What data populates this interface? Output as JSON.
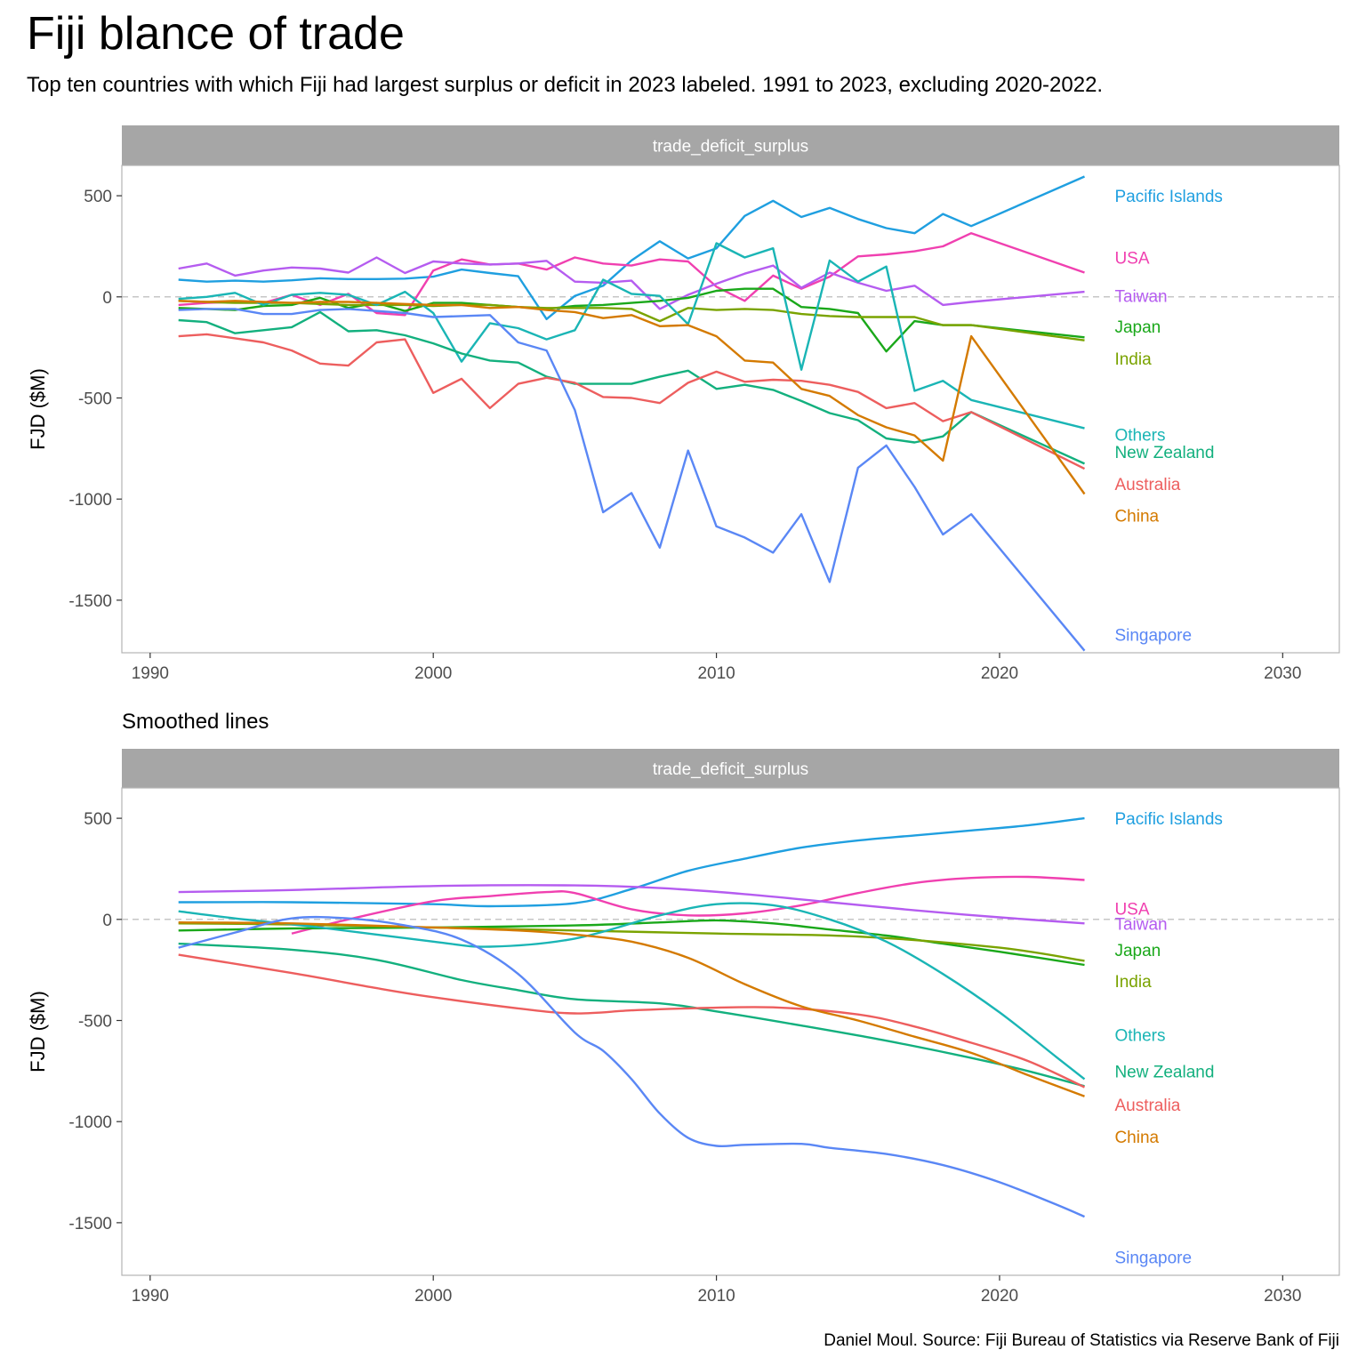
{
  "title": "Fiji blance of trade",
  "subtitle": "Top ten countries with which Fiji had largest surplus or deficit in 2023 labeled. 1991 to 2023, excluding 2020-2022.",
  "caption": "Daniel Moul. Source: Fiji Bureau of Statistics via Reserve Bank of Fiji",
  "chart_data": [
    {
      "type": "line",
      "strip_label": "trade_deficit_surplus",
      "ylabel": "FJD ($M)",
      "xlim": [
        1989,
        2032
      ],
      "ylim": [
        -1760,
        650
      ],
      "x_ticks": [
        1990,
        2000,
        2010,
        2020,
        2030
      ],
      "y_ticks": [
        500,
        0,
        -500,
        -1000,
        -1500
      ],
      "reference_line": 0,
      "grid": false,
      "series": [
        {
          "name": "Pacific Islands",
          "color": "#1f9fe0",
          "label_y": 500,
          "x": [
            1991,
            1992,
            1993,
            1994,
            1995,
            1996,
            1997,
            1998,
            1999,
            2000,
            2001,
            2002,
            2003,
            2004,
            2005,
            2006,
            2007,
            2008,
            2009,
            2010,
            2011,
            2012,
            2013,
            2014,
            2015,
            2016,
            2017,
            2018,
            2019,
            2023
          ],
          "y": [
            85,
            75,
            80,
            75,
            82,
            92,
            88,
            88,
            90,
            100,
            135,
            118,
            102,
            -110,
            5,
            55,
            180,
            275,
            190,
            240,
            400,
            475,
            395,
            440,
            385,
            340,
            315,
            410,
            350,
            595
          ]
        },
        {
          "name": "USA",
          "color": "#f040b0",
          "label_y": 195,
          "x": [
            1991,
            1992,
            1993,
            1994,
            1995,
            1996,
            1997,
            1998,
            1999,
            2000,
            2001,
            2002,
            2003,
            2004,
            2005,
            2006,
            2007,
            2008,
            2009,
            2010,
            2011,
            2012,
            2013,
            2014,
            2015,
            2016,
            2017,
            2018,
            2019,
            2023
          ],
          "y": [
            -40,
            -30,
            -25,
            -30,
            10,
            -40,
            15,
            -80,
            -90,
            130,
            185,
            160,
            165,
            135,
            195,
            165,
            155,
            185,
            175,
            50,
            -20,
            105,
            40,
            100,
            200,
            210,
            225,
            250,
            315,
            120
          ]
        },
        {
          "name": "Taiwan",
          "color": "#b55cf0",
          "label_y": 5,
          "x": [
            1991,
            1992,
            1993,
            1994,
            1995,
            1996,
            1997,
            1998,
            1999,
            2000,
            2001,
            2002,
            2003,
            2004,
            2005,
            2006,
            2007,
            2008,
            2009,
            2010,
            2011,
            2012,
            2013,
            2014,
            2015,
            2016,
            2017,
            2018,
            2019,
            2023
          ],
          "y": [
            140,
            165,
            105,
            130,
            145,
            140,
            120,
            195,
            118,
            175,
            165,
            160,
            165,
            178,
            75,
            70,
            80,
            -60,
            10,
            65,
            115,
            155,
            45,
            120,
            70,
            30,
            55,
            -40,
            -25,
            25
          ]
        },
        {
          "name": "Japan",
          "color": "#1aa81a",
          "label_y": -145,
          "x": [
            1991,
            1992,
            1993,
            1994,
            1995,
            1996,
            1997,
            1998,
            1999,
            2000,
            2001,
            2002,
            2003,
            2004,
            2005,
            2006,
            2007,
            2008,
            2009,
            2010,
            2011,
            2012,
            2013,
            2014,
            2015,
            2016,
            2017,
            2018,
            2019,
            2023
          ],
          "y": [
            -55,
            -60,
            -65,
            -45,
            -40,
            -5,
            -55,
            -30,
            -70,
            -30,
            -30,
            -40,
            -50,
            -60,
            -45,
            -40,
            -30,
            -20,
            -5,
            30,
            40,
            40,
            -50,
            -60,
            -80,
            -270,
            -120,
            -140,
            -140,
            -200
          ]
        },
        {
          "name": "India",
          "color": "#7aa300",
          "label_y": -305,
          "x": [
            1991,
            1992,
            1993,
            1994,
            1995,
            1996,
            1997,
            1998,
            1999,
            2000,
            2001,
            2002,
            2003,
            2004,
            2005,
            2006,
            2007,
            2008,
            2009,
            2010,
            2011,
            2012,
            2013,
            2014,
            2015,
            2016,
            2017,
            2018,
            2019,
            2023
          ],
          "y": [
            -20,
            -25,
            -30,
            -30,
            -30,
            -35,
            -40,
            -40,
            -40,
            -45,
            -40,
            -40,
            -50,
            -55,
            -55,
            -55,
            -60,
            -120,
            -55,
            -65,
            -60,
            -65,
            -85,
            -95,
            -100,
            -100,
            -100,
            -140,
            -140,
            -215
          ]
        },
        {
          "name": "Others",
          "color": "#1ab5b5",
          "label_y": -680,
          "x": [
            1991,
            1992,
            1993,
            1994,
            1995,
            1996,
            1997,
            1998,
            1999,
            2000,
            2001,
            2002,
            2003,
            2004,
            2005,
            2006,
            2007,
            2008,
            2009,
            2010,
            2011,
            2012,
            2013,
            2014,
            2015,
            2016,
            2017,
            2018,
            2019,
            2023
          ],
          "y": [
            -10,
            0,
            20,
            -40,
            10,
            20,
            10,
            -40,
            25,
            -80,
            -320,
            -130,
            -155,
            -210,
            -165,
            85,
            15,
            5,
            -135,
            265,
            195,
            240,
            -360,
            180,
            75,
            150,
            -465,
            -415,
            -510,
            -650
          ]
        },
        {
          "name": "New Zealand",
          "color": "#13b07e",
          "label_y": -765,
          "x": [
            1991,
            1992,
            1993,
            1994,
            1995,
            1996,
            1997,
            1998,
            1999,
            2000,
            2001,
            2002,
            2003,
            2004,
            2005,
            2006,
            2007,
            2008,
            2009,
            2010,
            2011,
            2012,
            2013,
            2014,
            2015,
            2016,
            2017,
            2018,
            2019,
            2023
          ],
          "y": [
            -115,
            -125,
            -180,
            -165,
            -150,
            -75,
            -170,
            -165,
            -190,
            -230,
            -280,
            -315,
            -325,
            -395,
            -430,
            -430,
            -430,
            -395,
            -365,
            -455,
            -435,
            -460,
            -515,
            -575,
            -610,
            -700,
            -720,
            -690,
            -570,
            -825
          ]
        },
        {
          "name": "Australia",
          "color": "#ed5e5e",
          "label_y": -925,
          "x": [
            1991,
            1992,
            1993,
            1994,
            1995,
            1996,
            1997,
            1998,
            1999,
            2000,
            2001,
            2002,
            2003,
            2004,
            2005,
            2006,
            2007,
            2008,
            2009,
            2010,
            2011,
            2012,
            2013,
            2014,
            2015,
            2016,
            2017,
            2018,
            2019,
            2023
          ],
          "y": [
            -195,
            -185,
            -205,
            -225,
            -265,
            -330,
            -340,
            -225,
            -210,
            -475,
            -405,
            -550,
            -430,
            -400,
            -425,
            -495,
            -500,
            -525,
            -425,
            -370,
            -420,
            -410,
            -415,
            -435,
            -470,
            -550,
            -525,
            -615,
            -570,
            -850
          ]
        },
        {
          "name": "China",
          "color": "#d47a00",
          "label_y": -1080,
          "x": [
            1991,
            1992,
            1993,
            1994,
            1995,
            1996,
            1997,
            1998,
            1999,
            2000,
            2001,
            2002,
            2003,
            2004,
            2005,
            2006,
            2007,
            2008,
            2009,
            2010,
            2011,
            2012,
            2013,
            2014,
            2015,
            2016,
            2017,
            2018,
            2019,
            2023
          ],
          "y": [
            -20,
            -25,
            -20,
            -25,
            -30,
            -25,
            -25,
            -30,
            -35,
            -40,
            -40,
            -55,
            -50,
            -65,
            -75,
            -105,
            -90,
            -145,
            -140,
            -195,
            -315,
            -325,
            -455,
            -490,
            -585,
            -645,
            -685,
            -810,
            -195,
            -975
          ]
        },
        {
          "name": "Singapore",
          "color": "#5a87f5",
          "label_y": -1670,
          "x": [
            1991,
            1992,
            1993,
            1994,
            1995,
            1996,
            1997,
            1998,
            1999,
            2000,
            2001,
            2002,
            2003,
            2004,
            2005,
            2006,
            2007,
            2008,
            2009,
            2010,
            2011,
            2012,
            2013,
            2014,
            2015,
            2016,
            2017,
            2018,
            2019,
            2023
          ],
          "y": [
            -65,
            -60,
            -60,
            -85,
            -85,
            -65,
            -60,
            -70,
            -80,
            -100,
            -95,
            -90,
            -225,
            -265,
            -560,
            -1065,
            -970,
            -1240,
            -760,
            -1135,
            -1190,
            -1265,
            -1075,
            -1410,
            -845,
            -735,
            -940,
            -1175,
            -1075,
            -1750
          ]
        }
      ]
    },
    {
      "type": "line",
      "panel_title": "Smoothed lines",
      "strip_label": "trade_deficit_surplus",
      "ylabel": "FJD ($M)",
      "xlim": [
        1989,
        2032
      ],
      "ylim": [
        -1760,
        650
      ],
      "x_ticks": [
        1990,
        2000,
        2010,
        2020,
        2030
      ],
      "y_ticks": [
        500,
        0,
        -500,
        -1000,
        -1500
      ],
      "reference_line": 0,
      "grid": false,
      "series": [
        {
          "name": "Pacific Islands",
          "color": "#1f9fe0",
          "label_y": 500,
          "x": [
            1991,
            1995,
            2000,
            2002,
            2005,
            2007,
            2009,
            2011,
            2013,
            2015,
            2017,
            2019,
            2021,
            2023
          ],
          "y": [
            85,
            85,
            75,
            65,
            80,
            150,
            240,
            300,
            355,
            390,
            415,
            440,
            465,
            500
          ]
        },
        {
          "name": "USA",
          "color": "#f040b0",
          "label_y": 55,
          "x": [
            1995,
            1997,
            2000,
            2002,
            2004,
            2005,
            2007,
            2009,
            2011,
            2013,
            2015,
            2017,
            2019,
            2021,
            2023
          ],
          "y": [
            -70,
            0,
            90,
            115,
            135,
            130,
            50,
            20,
            30,
            70,
            130,
            180,
            205,
            210,
            195
          ]
        },
        {
          "name": "Taiwan",
          "color": "#b55cf0",
          "label_y": -20,
          "x": [
            1991,
            1995,
            2000,
            2005,
            2008,
            2011,
            2014,
            2017,
            2020,
            2023
          ],
          "y": [
            135,
            145,
            165,
            168,
            155,
            125,
            85,
            45,
            10,
            -20
          ]
        },
        {
          "name": "Japan",
          "color": "#1aa81a",
          "label_y": -150,
          "x": [
            1991,
            1995,
            2000,
            2005,
            2008,
            2010,
            2012,
            2014,
            2016,
            2018,
            2020,
            2023
          ],
          "y": [
            -55,
            -45,
            -40,
            -30,
            -15,
            -5,
            -20,
            -50,
            -80,
            -120,
            -160,
            -225
          ]
        },
        {
          "name": "India",
          "color": "#7aa300",
          "label_y": -305,
          "x": [
            1991,
            1995,
            2000,
            2005,
            2010,
            2015,
            2020,
            2023
          ],
          "y": [
            -20,
            -25,
            -40,
            -55,
            -70,
            -85,
            -140,
            -205
          ]
        },
        {
          "name": "Others",
          "color": "#1ab5b5",
          "label_y": -570,
          "x": [
            1991,
            1993,
            1996,
            2000,
            2002,
            2005,
            2008,
            2010,
            2012,
            2014,
            2016,
            2018,
            2020,
            2022,
            2023
          ],
          "y": [
            40,
            5,
            -40,
            -110,
            -135,
            -95,
            20,
            75,
            70,
            0,
            -110,
            -270,
            -460,
            -680,
            -790
          ]
        },
        {
          "name": "New Zealand",
          "color": "#13b07e",
          "label_y": -750,
          "x": [
            1991,
            1995,
            1998,
            2001,
            2003,
            2005,
            2008,
            2010,
            2013,
            2016,
            2019,
            2021,
            2023
          ],
          "y": [
            -120,
            -150,
            -200,
            -300,
            -350,
            -395,
            -415,
            -455,
            -525,
            -600,
            -685,
            -750,
            -825
          ]
        },
        {
          "name": "Australia",
          "color": "#ed5e5e",
          "label_y": -915,
          "x": [
            1991,
            1995,
            1998,
            2000,
            2003,
            2005,
            2007,
            2009,
            2012,
            2015,
            2017,
            2019,
            2021,
            2023
          ],
          "y": [
            -175,
            -265,
            -340,
            -385,
            -440,
            -465,
            -450,
            -440,
            -435,
            -470,
            -530,
            -610,
            -700,
            -830
          ]
        },
        {
          "name": "China",
          "color": "#d47a00",
          "label_y": -1075,
          "x": [
            1991,
            1995,
            2000,
            2003,
            2005,
            2007,
            2009,
            2011,
            2013,
            2015,
            2017,
            2019,
            2021,
            2023
          ],
          "y": [
            -15,
            -20,
            -40,
            -55,
            -75,
            -110,
            -190,
            -320,
            -430,
            -500,
            -580,
            -660,
            -770,
            -875
          ]
        },
        {
          "name": "Singapore",
          "color": "#5a87f5",
          "label_y": -1670,
          "x": [
            1991,
            1993,
            1995,
            1997,
            1999,
            2001,
            2003,
            2005,
            2006,
            2007,
            2008,
            2009,
            2010,
            2011,
            2013,
            2014,
            2016,
            2018,
            2020,
            2022,
            2023
          ],
          "y": [
            -140,
            -65,
            5,
            5,
            -30,
            -100,
            -270,
            -560,
            -650,
            -790,
            -960,
            -1080,
            -1120,
            -1115,
            -1110,
            -1130,
            -1160,
            -1215,
            -1300,
            -1410,
            -1470
          ]
        }
      ]
    }
  ]
}
